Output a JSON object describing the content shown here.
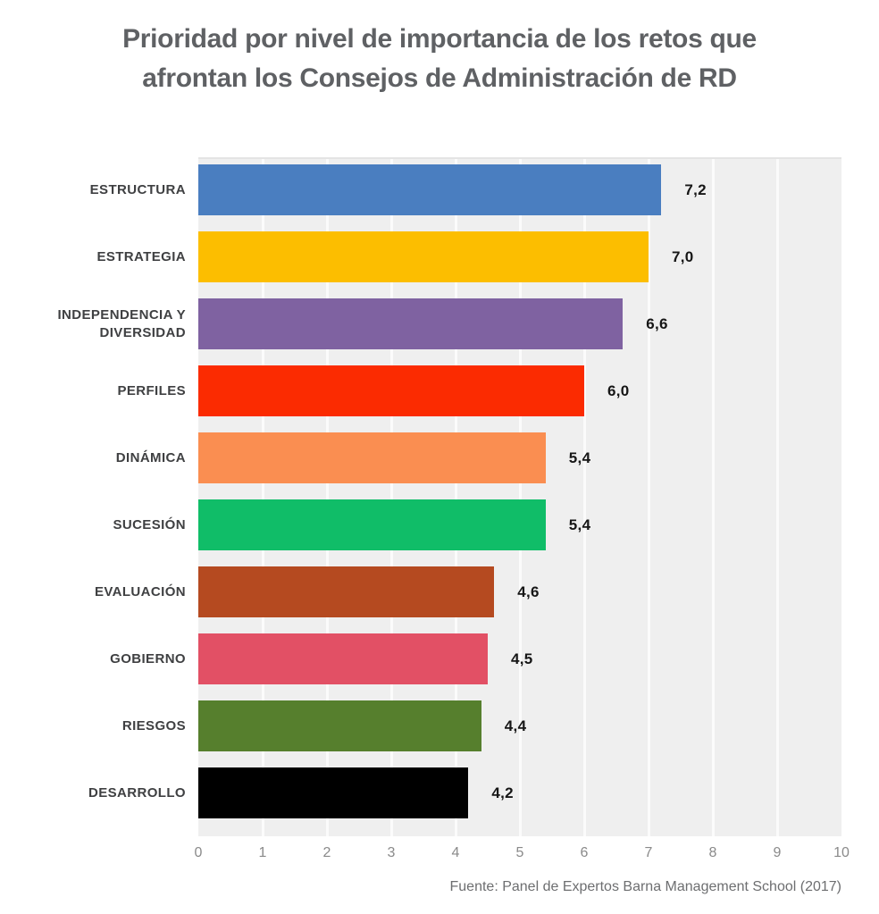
{
  "title": {
    "line1": "Prioridad por nivel de importancia de los retos que",
    "line2": "afrontan los Consejos de Administración de RD"
  },
  "chart_data": {
    "type": "bar",
    "orientation": "horizontal",
    "title": "Prioridad por nivel de importancia de los retos que afrontan los Consejos de Administración de RD",
    "categories": [
      "ESTRUCTURA",
      "ESTRATEGIA",
      "INDEPENDENCIA Y DIVERSIDAD",
      "PERFILES",
      "DINÁMICA",
      "SUCESIÓN",
      "EVALUACIÓN",
      "GOBIERNO",
      "RIESGOS",
      "DESARROLLO"
    ],
    "values": [
      7.2,
      7.0,
      6.6,
      6.0,
      5.4,
      5.4,
      4.6,
      4.5,
      4.4,
      4.2
    ],
    "value_labels": [
      "7,2",
      "7,0",
      "6,6",
      "6,0",
      "5,4",
      "5,4",
      "4,6",
      "4,5",
      "4,4",
      "4,2"
    ],
    "bar_colors": [
      "#4a7ec0",
      "#fcbe00",
      "#7f62a1",
      "#fb2b01",
      "#fa8e51",
      "#10bd68",
      "#b54a20",
      "#e25065",
      "#567f2d",
      "#000000"
    ],
    "xlabel": "",
    "ylabel": "",
    "xlim": [
      0,
      10
    ],
    "x_ticks": [
      "0",
      "1",
      "2",
      "3",
      "4",
      "5",
      "6",
      "7",
      "8",
      "9",
      "10"
    ],
    "grid": true,
    "plot_background": "#efefef",
    "gridline_color": "#fbfbfb",
    "legend": "none"
  },
  "source": "Fuente: Panel de Expertos Barna Management School (2017)"
}
